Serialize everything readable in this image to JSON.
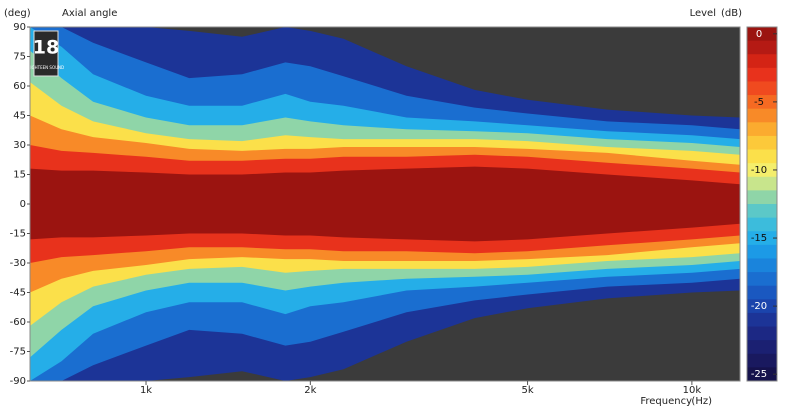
{
  "chart_data": {
    "type": "contour",
    "title": "Axial angle",
    "y_unit": "(deg)",
    "x_label": "Frequency",
    "x_unit": "(Hz)",
    "colorbar_label": "Level",
    "colorbar_unit": "(dB)",
    "logo": {
      "mark": "18",
      "text": "EIGHTEEN SOUND"
    },
    "x_scale": "log",
    "xlim": [
      613,
      12250
    ],
    "xticks": [
      {
        "value": 1000,
        "label": "1k"
      },
      {
        "value": 2000,
        "label": "2k"
      },
      {
        "value": 5000,
        "label": "5k"
      },
      {
        "value": 10000,
        "label": "10k"
      }
    ],
    "ylim": [
      -90,
      90
    ],
    "yticks": [
      90,
      75,
      60,
      45,
      30,
      15,
      0,
      -15,
      -30,
      -45,
      -60,
      -75,
      -90
    ],
    "background": "#3b3b3b",
    "x": [
      613,
      700,
      800,
      1000,
      1200,
      1500,
      1800,
      2000,
      2300,
      3000,
      4000,
      5000,
      7000,
      10000,
      12250
    ],
    "contours": [
      {
        "level": -24,
        "angles": [
          90,
          90,
          90,
          90,
          88,
          85,
          90,
          88,
          84,
          70,
          58,
          53,
          48,
          45,
          44
        ]
      },
      {
        "level": -21,
        "angles": [
          90,
          90,
          82,
          72,
          64,
          66,
          72,
          70,
          65,
          55,
          49,
          46,
          42,
          40,
          38
        ]
      },
      {
        "level": -18,
        "angles": [
          90,
          80,
          66,
          55,
          50,
          50,
          56,
          52,
          50,
          44,
          42,
          40,
          37,
          35,
          33
        ]
      },
      {
        "level": -15,
        "angles": [
          78,
          64,
          52,
          44,
          40,
          40,
          44,
          42,
          40,
          38,
          37,
          36,
          33,
          31,
          29
        ]
      },
      {
        "level": -12,
        "angles": [
          62,
          50,
          42,
          36,
          33,
          32,
          35,
          34,
          33,
          33,
          33,
          32,
          29,
          27,
          25
        ]
      },
      {
        "level": -9,
        "angles": [
          45,
          38,
          34,
          31,
          28,
          27,
          28,
          28,
          29,
          29,
          29,
          28,
          26,
          22,
          20
        ]
      },
      {
        "level": -6,
        "angles": [
          30,
          27,
          26,
          24,
          22,
          22,
          23,
          23,
          24,
          24,
          25,
          24,
          21,
          18,
          16
        ]
      },
      {
        "level": -3,
        "angles": [
          18,
          17,
          17,
          16,
          15,
          15,
          16,
          16,
          17,
          18,
          19,
          18,
          15,
          12,
          10
        ]
      }
    ],
    "colorbar": {
      "levels": [
        0,
        -1,
        -2,
        -3,
        -4,
        -5,
        -6,
        -7,
        -8,
        -9,
        -10,
        -11,
        -12,
        -13,
        -14,
        -15,
        -16,
        -17,
        -18,
        -19,
        -20,
        -21,
        -22,
        -23,
        -24,
        -25
      ],
      "colors": [
        "#9b1410",
        "#b51a14",
        "#d42415",
        "#e8321c",
        "#f04a1f",
        "#f56a22",
        "#f88a28",
        "#fbab2f",
        "#fcc93a",
        "#fbe04a",
        "#f4ee6c",
        "#c8e58c",
        "#8fd5a8",
        "#5cc8c8",
        "#3cbcdc",
        "#25aee8",
        "#1c9ae6",
        "#1a84dc",
        "#1a6ed0",
        "#1a58c0",
        "#1b44ac",
        "#1c3497",
        "#1c2884",
        "#1b2072",
        "#19195f",
        "#15124c"
      ],
      "ticks": [
        0,
        -5,
        -10,
        -15,
        -20,
        -25
      ]
    }
  }
}
